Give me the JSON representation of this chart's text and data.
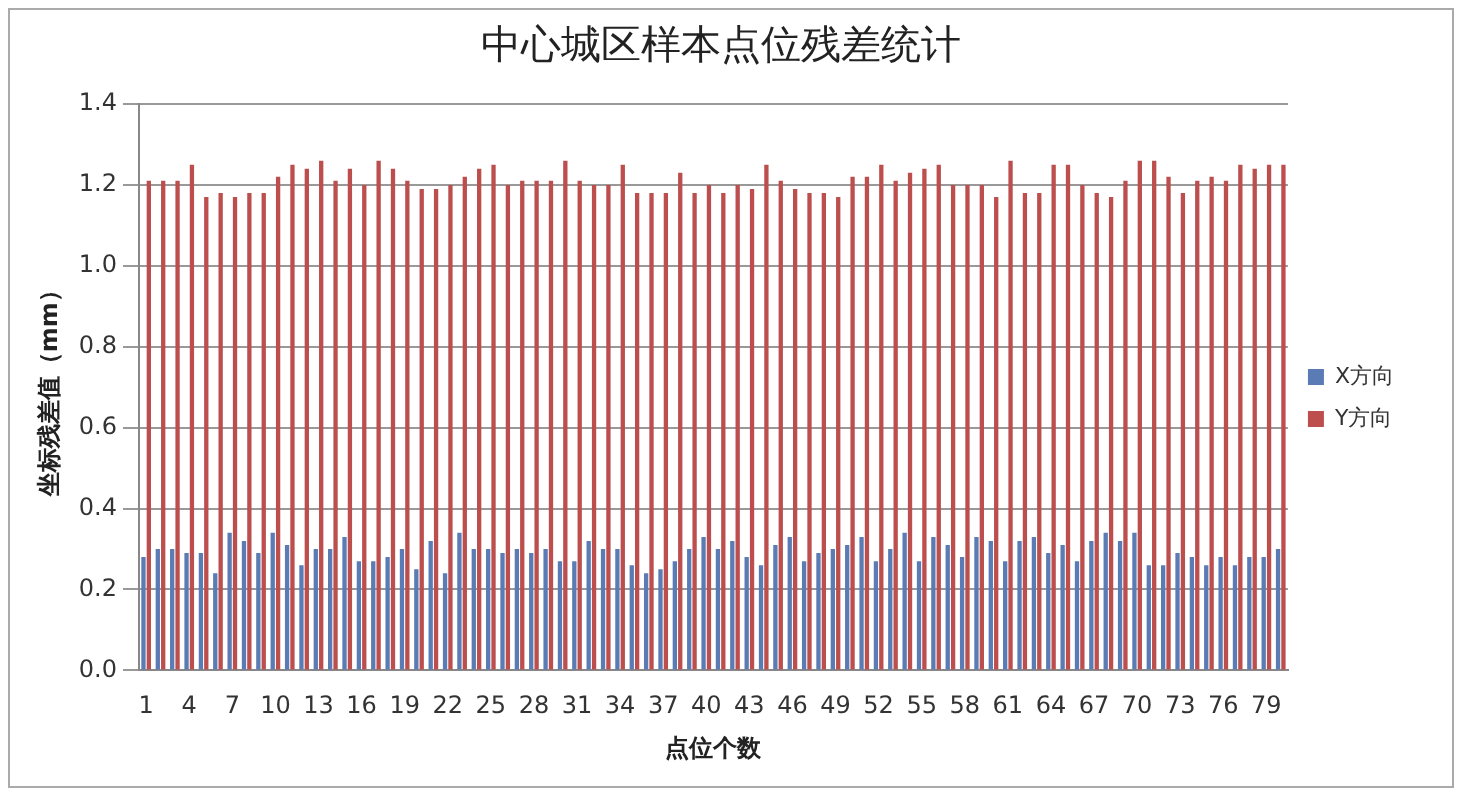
{
  "chart_data": {
    "type": "bar",
    "title": "中心城区样本点位残差统计",
    "xlabel": "点位个数",
    "ylabel": "坐标残差值（mm）",
    "categories": [
      "1",
      null,
      null,
      "4",
      null,
      null,
      "7",
      null,
      null,
      "10",
      null,
      null,
      "13",
      null,
      null,
      "16",
      null,
      null,
      "19",
      null,
      null,
      "22",
      null,
      null,
      "25",
      null,
      null,
      "28",
      null,
      null,
      "31",
      null,
      null,
      "34",
      null,
      null,
      "37",
      null,
      null,
      "40",
      null,
      null,
      "43",
      null,
      null,
      "46",
      null,
      null,
      "49",
      null,
      null,
      "52",
      null,
      null,
      "55",
      null,
      null,
      "58",
      null,
      null,
      "61",
      null,
      null,
      "64",
      null,
      null,
      "67",
      null,
      null,
      "70",
      null,
      null,
      "73",
      null,
      null,
      "76",
      null,
      null,
      "79",
      null
    ],
    "series": [
      {
        "name": "X方向",
        "color": "#5b7bb4",
        "values": [
          0.28,
          0.3,
          0.3,
          0.29,
          0.29,
          0.24,
          0.34,
          0.32,
          0.29,
          0.34,
          0.31,
          0.26,
          0.3,
          0.3,
          0.33,
          0.27,
          0.27,
          0.28,
          0.3,
          0.25,
          0.32,
          0.24,
          0.34,
          0.3,
          0.3,
          0.29,
          0.3,
          0.29,
          0.3,
          0.27,
          0.27,
          0.32,
          0.3,
          0.3,
          0.26,
          0.24,
          0.25,
          0.27,
          0.3,
          0.33,
          0.3,
          0.32,
          0.28,
          0.26,
          0.31,
          0.33,
          0.27,
          0.29,
          0.3,
          0.31,
          0.33,
          0.27,
          0.3,
          0.34,
          0.27,
          0.33,
          0.31,
          0.28,
          0.33,
          0.32,
          0.27,
          0.32,
          0.33,
          0.29,
          0.31,
          0.27,
          0.32,
          0.34,
          0.32,
          0.34,
          0.26,
          0.26,
          0.29,
          0.28,
          0.26,
          0.28,
          0.26,
          0.28,
          0.28,
          0.3
        ]
      },
      {
        "name": "Y方向",
        "color": "#bc4f4d",
        "values": [
          1.21,
          1.21,
          1.21,
          1.25,
          1.17,
          1.18,
          1.17,
          1.18,
          1.18,
          1.22,
          1.25,
          1.24,
          1.26,
          1.21,
          1.24,
          1.2,
          1.26,
          1.24,
          1.21,
          1.19,
          1.19,
          1.2,
          1.22,
          1.24,
          1.25,
          1.2,
          1.21,
          1.21,
          1.21,
          1.26,
          1.21,
          1.2,
          1.2,
          1.25,
          1.18,
          1.18,
          1.18,
          1.23,
          1.18,
          1.2,
          1.18,
          1.2,
          1.19,
          1.25,
          1.21,
          1.19,
          1.18,
          1.18,
          1.17,
          1.22,
          1.22,
          1.25,
          1.21,
          1.23,
          1.24,
          1.25,
          1.2,
          1.2,
          1.2,
          1.17,
          1.26,
          1.18,
          1.18,
          1.25,
          1.25,
          1.2,
          1.18,
          1.17,
          1.21,
          1.26,
          1.26,
          1.22,
          1.18,
          1.21,
          1.22,
          1.21,
          1.25,
          1.24,
          1.25,
          1.25
        ]
      }
    ],
    "ylim": [
      0,
      1.4
    ],
    "yticks": [
      {
        "value": 0,
        "label": "0.0"
      },
      0.2,
      0.4,
      0.6,
      0.8,
      {
        "value": 1,
        "label": "1.0"
      },
      1.2,
      1.4
    ],
    "grid": "y",
    "legend": "right"
  }
}
